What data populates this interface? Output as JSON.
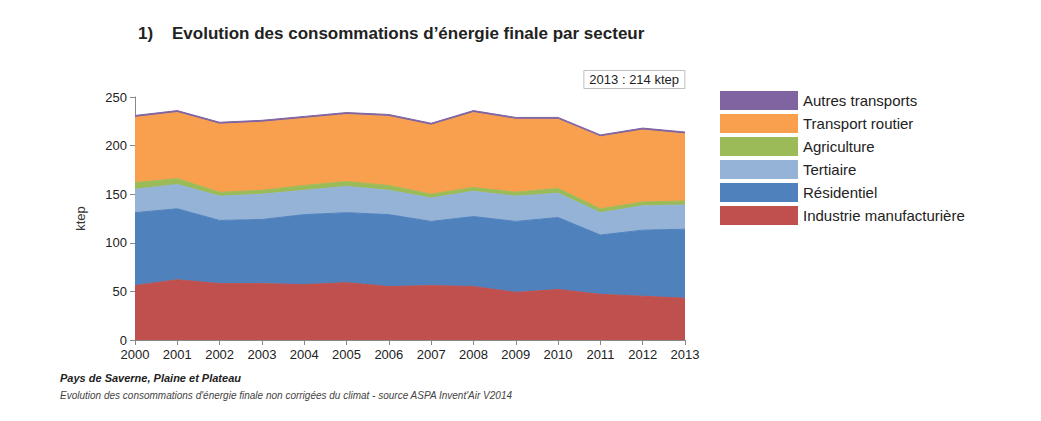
{
  "chart_data": {
    "type": "area",
    "title": "1)    Evolution des consommations d’énergie finale par secteur",
    "annotation": "2013 : 214 ktep",
    "y_label": "ktep",
    "notes": [
      "Pays de Saverne, Plaine et Plateau",
      "Evolution des consommations d'énergie finale non corrigées du climat - source ASPA Invent'Air V2014"
    ],
    "categories": [
      "2000",
      "2001",
      "2002",
      "2003",
      "2004",
      "2005",
      "2006",
      "2007",
      "2008",
      "2009",
      "2010",
      "2011",
      "2012",
      "2013"
    ],
    "series": [
      {
        "name": "Industrie manufacturière",
        "color": "#c0504d",
        "values": [
          56,
          62,
          58,
          58,
          57,
          59,
          55,
          56,
          55,
          49,
          52,
          47,
          45,
          43
        ]
      },
      {
        "name": "Résidentiel",
        "color": "#4f81bd",
        "values": [
          75,
          73,
          65,
          66,
          72,
          72,
          74,
          66,
          72,
          73,
          74,
          61,
          68,
          71
        ]
      },
      {
        "name": "Tertiaire",
        "color": "#95b3d7",
        "values": [
          24,
          25,
          25,
          26,
          25,
          27,
          25,
          24,
          26,
          26,
          25,
          23,
          25,
          25
        ]
      },
      {
        "name": "Agriculture",
        "color": "#9bbb59",
        "values": [
          7,
          6,
          4,
          4,
          5,
          5,
          5,
          4,
          4,
          4,
          5,
          4,
          4,
          4
        ]
      },
      {
        "name": "Transport routier",
        "color": "#f9a04e",
        "values": [
          67,
          68,
          70,
          70,
          69,
          69,
          71,
          71,
          77,
          75,
          71,
          74,
          74,
          69
        ]
      },
      {
        "name": "Autres transports",
        "color": "#8064a2",
        "values": [
          2,
          2,
          2,
          2,
          2,
          2,
          2,
          2,
          2,
          2,
          2,
          2,
          2,
          2
        ]
      }
    ],
    "ylim": [
      0,
      250
    ],
    "yticks": [
      0,
      50,
      100,
      150,
      200,
      250
    ],
    "stacked": true,
    "legend": "right",
    "grid": false
  }
}
